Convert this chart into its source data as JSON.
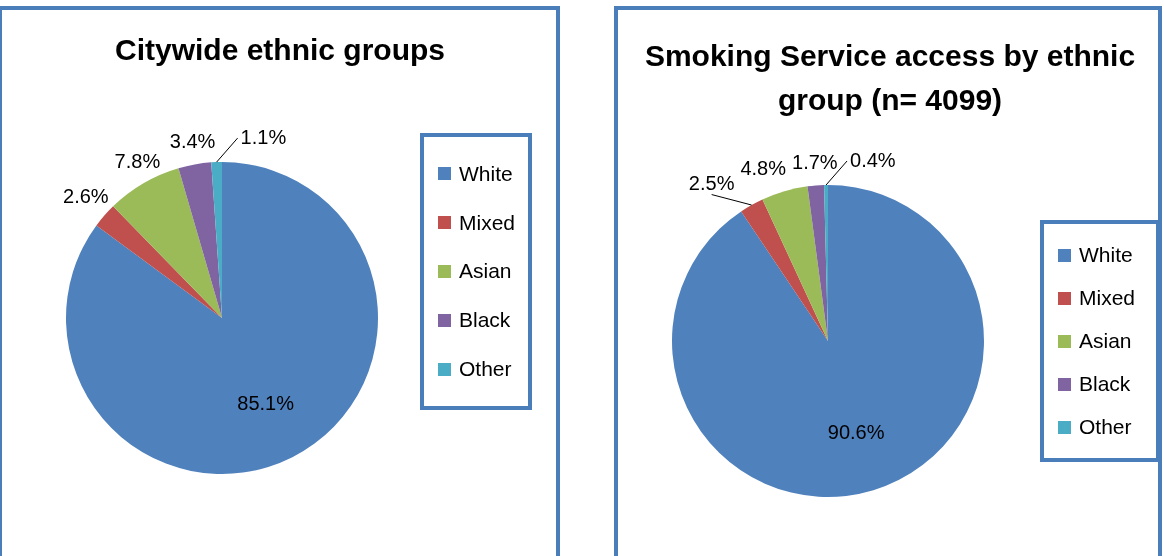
{
  "chart_data": [
    {
      "type": "pie",
      "title": "Citywide ethnic groups",
      "categories": [
        "White",
        "Mixed",
        "Asian",
        "Black",
        "Other"
      ],
      "values": [
        85.1,
        2.6,
        7.8,
        3.4,
        1.1
      ],
      "value_labels": [
        "85.1%",
        "2.6%",
        "7.8%",
        "3.4%",
        "1.1%"
      ],
      "colors": [
        "#4f81bd",
        "#c0504d",
        "#9bbb59",
        "#8064a2",
        "#4bacc6"
      ],
      "legend": "right"
    },
    {
      "type": "pie",
      "title": "Smoking Service access by ethnic group (n= 4099)",
      "categories": [
        "White",
        "Mixed",
        "Asian",
        "Black",
        "Other"
      ],
      "values": [
        90.6,
        2.5,
        4.8,
        1.7,
        0.4
      ],
      "value_labels": [
        "90.6%",
        "2.5%",
        "4.8%",
        "1.7%",
        "0.4%"
      ],
      "colors": [
        "#4f81bd",
        "#c0504d",
        "#9bbb59",
        "#8064a2",
        "#4bacc6"
      ],
      "legend": "right"
    }
  ]
}
